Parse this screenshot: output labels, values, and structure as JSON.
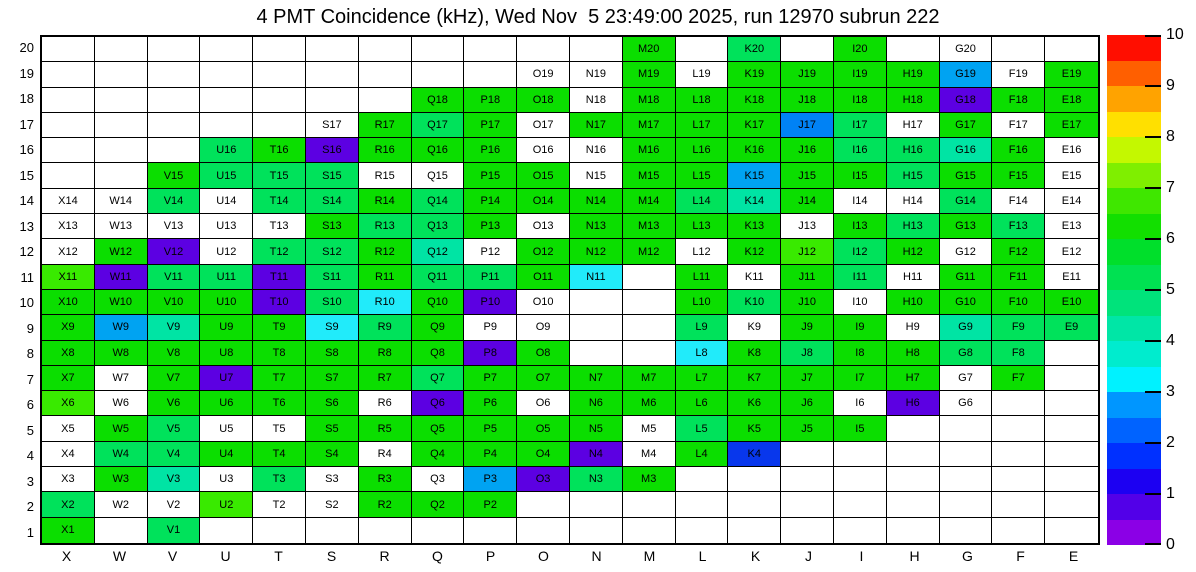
{
  "title": "4 PMT Coincidence (kHz), Wed Nov  5 23:49:00 2025, run 12970 subrun 222",
  "chart_data": {
    "type": "heatmap",
    "title": "4 PMT Coincidence (kHz), Wed Nov  5 23:49:00 2025, run 12970 subrun 222",
    "x_labels": [
      "X",
      "W",
      "V",
      "U",
      "T",
      "S",
      "R",
      "Q",
      "P",
      "O",
      "N",
      "M",
      "L",
      "K",
      "J",
      "I",
      "H",
      "G",
      "F",
      "E"
    ],
    "y_labels": [
      20,
      19,
      18,
      17,
      16,
      15,
      14,
      13,
      12,
      11,
      10,
      9,
      8,
      7,
      6,
      5,
      4,
      3,
      2,
      1
    ],
    "cell_encoding": "label:colorClass per cell, empty string = blank cell; classes: g=green, sg=spring-green, tg=teal-green, cy=cyan, sb=sky-blue, mb=medium-blue, bl=blue, pu=purple, yg=yellow-green, w=white(no rate shown)",
    "rows": [
      [
        "",
        "",
        "",
        "",
        "",
        "",
        "",
        "",
        "",
        "",
        "",
        "M20:g",
        "",
        "K20:sg",
        "",
        "I20:g",
        "",
        "G20:w",
        "",
        ""
      ],
      [
        "",
        "",
        "",
        "",
        "",
        "",
        "",
        "",
        "",
        "O19:w",
        "N19:w",
        "M19:g",
        "L19:w",
        "K19:g",
        "J19:g",
        "I19:g",
        "H19:g",
        "G19:sb",
        "F19:w",
        "E19:g"
      ],
      [
        "",
        "",
        "",
        "",
        "",
        "",
        "",
        "Q18:g",
        "P18:g",
        "O18:g",
        "N18:w",
        "M18:g",
        "L18:g",
        "K18:g",
        "J18:g",
        "I18:g",
        "H18:g",
        "G18:pu",
        "F18:g",
        "E18:g"
      ],
      [
        "",
        "",
        "",
        "",
        "",
        "S17:w",
        "R17:g",
        "Q17:sg",
        "P17:g",
        "O17:w",
        "N17:g",
        "M17:g",
        "L17:g",
        "K17:g",
        "J17:mb",
        "I17:sg",
        "H17:w",
        "G17:g",
        "F17:w",
        "E17:g"
      ],
      [
        "",
        "",
        "",
        "U16:sg",
        "T16:g",
        "S16:pu",
        "R16:g",
        "Q16:g",
        "P16:g",
        "O16:w",
        "N16:w",
        "M16:g",
        "L16:g",
        "K16:g",
        "J16:g",
        "I16:sg",
        "H16:sg",
        "G16:tg",
        "F16:g",
        "E16:w"
      ],
      [
        "",
        "",
        "V15:g",
        "U15:sg",
        "T15:sg",
        "S15:sg",
        "R15:w",
        "Q15:w",
        "P15:g",
        "O15:g",
        "N15:w",
        "M15:g",
        "L15:g",
        "K15:sb",
        "J15:g",
        "I15:g",
        "H15:sg",
        "G15:g",
        "F15:g",
        "E15:w"
      ],
      [
        "X14:w",
        "W14:w",
        "V14:sg",
        "U14:w",
        "T14:sg",
        "S14:sg",
        "R14:g",
        "Q14:sg",
        "P14:g",
        "O14:g",
        "N14:g",
        "M14:g",
        "L14:sg",
        "K14:tg",
        "J14:g",
        "I14:w",
        "H14:w",
        "G14:sg",
        "F14:w",
        "E14:w"
      ],
      [
        "X13:w",
        "W13:w",
        "V13:w",
        "U13:w",
        "T13:w",
        "S13:g",
        "R13:sg",
        "Q13:sg",
        "P13:g",
        "O13:w",
        "N13:g",
        "M13:g",
        "L13:g",
        "K13:g",
        "J13:w",
        "I13:g",
        "H13:sg",
        "G13:g",
        "F13:sg",
        "E13:w"
      ],
      [
        "X12:w",
        "W12:g",
        "V12:pu",
        "U12:w",
        "T12:sg",
        "S12:sg",
        "R12:g",
        "Q12:tg",
        "P12:w",
        "O12:g",
        "N12:g",
        "M12:g",
        "L12:w",
        "K12:g",
        "J12:yg",
        "I12:sg",
        "H12:g",
        "G12:w",
        "F12:g",
        "E12:w"
      ],
      [
        "X11:yg",
        "W11:pu",
        "V11:sg",
        "U11:sg",
        "T11:pu",
        "S11:sg",
        "R11:g",
        "Q11:sg",
        "P11:sg",
        "O11:g",
        "N11:cy",
        "",
        "L11:g",
        "K11:w",
        "J11:g",
        "I11:sg",
        "H11:w",
        "G11:g",
        "F11:g",
        "E11:w"
      ],
      [
        "X10:g",
        "W10:g",
        "V10:g",
        "U10:g",
        "T10:pu",
        "S10:sg",
        "R10:cy",
        "Q10:g",
        "P10:pu",
        "O10:w",
        "",
        "",
        "L10:g",
        "K10:sg",
        "J10:g",
        "I10:w",
        "H10:g",
        "G10:g",
        "F10:g",
        "E10:g"
      ],
      [
        "X9:g",
        "W9:sb",
        "V9:tg",
        "U9:g",
        "T9:g",
        "S9:cy",
        "R9:sg",
        "Q9:g",
        "P9:w",
        "O9:w",
        "",
        "",
        "L9:sg",
        "K9:w",
        "J9:g",
        "I9:g",
        "H9:w",
        "G9:tg",
        "F9:sg",
        "E9:sg"
      ],
      [
        "X8:g",
        "W8:g",
        "V8:g",
        "U8:g",
        "T8:g",
        "S8:g",
        "R8:g",
        "Q8:g",
        "P8:pu",
        "O8:g",
        "",
        "",
        "L8:cy",
        "K8:g",
        "J8:sg",
        "I8:g",
        "H8:g",
        "G8:sg",
        "F8:sg",
        ""
      ],
      [
        "X7:g",
        "W7:w",
        "V7:g",
        "U7:pu",
        "T7:g",
        "S7:g",
        "R7:g",
        "Q7:sg",
        "P7:g",
        "O7:g",
        "N7:g",
        "M7:g",
        "L7:g",
        "K7:g",
        "J7:g",
        "I7:g",
        "H7:g",
        "G7:w",
        "F7:g",
        ""
      ],
      [
        "X6:yg",
        "W6:w",
        "V6:g",
        "U6:g",
        "T6:g",
        "S6:g",
        "R6:w",
        "Q6:pu",
        "P6:g",
        "O6:w",
        "N6:g",
        "M6:g",
        "L6:g",
        "K6:g",
        "J6:g",
        "I6:w",
        "H6:pu",
        "G6:w",
        "",
        ""
      ],
      [
        "X5:w",
        "W5:g",
        "V5:sg",
        "U5:w",
        "T5:w",
        "S5:g",
        "R5:g",
        "Q5:g",
        "P5:g",
        "O5:g",
        "N5:g",
        "M5:w",
        "L5:sg",
        "K5:g",
        "J5:g",
        "I5:g",
        "",
        "",
        "",
        ""
      ],
      [
        "X4:w",
        "W4:sg",
        "V4:sg",
        "U4:g",
        "T4:g",
        "S4:g",
        "R4:w",
        "Q4:g",
        "P4:g",
        "O4:g",
        "N4:pu",
        "M4:w",
        "L4:g",
        "K4:bl",
        "",
        "",
        "",
        "",
        "",
        ""
      ],
      [
        "X3:w",
        "W3:g",
        "V3:tg",
        "U3:w",
        "T3:sg",
        "S3:w",
        "R3:g",
        "Q3:w",
        "P3:sb",
        "O3:pu",
        "N3:sg",
        "M3:g",
        "",
        "",
        "",
        "",
        "",
        "",
        "",
        ""
      ],
      [
        "X2:sg",
        "W2:w",
        "V2:w",
        "U2:yg",
        "T2:w",
        "S2:w",
        "R2:g",
        "Q2:g",
        "P2:g",
        "",
        "",
        "",
        "",
        "",
        "",
        "",
        "",
        "",
        "",
        ""
      ],
      [
        "X1:g",
        "",
        "V1:sg",
        "",
        "",
        "",
        "",
        "",
        "",
        "",
        "",
        "",
        "",
        "",
        "",
        "",
        "",
        "",
        "",
        ""
      ]
    ],
    "palette": {
      "g": "#0BDE00",
      "sg": "#00E25B",
      "tg": "#00E4A4",
      "cy": "#21EBFA",
      "sb": "#00A3F2",
      "mb": "#0082F5",
      "bl": "#0837EC",
      "pu": "#5C00E2",
      "yg": "#39EA00",
      "w": "#FFFFFF"
    },
    "value_estimates_by_class": {
      "g": 5.3,
      "sg": 4.7,
      "tg": 4.1,
      "cy": 3.4,
      "sb": 2.8,
      "mb": 2.5,
      "bl": 1.8,
      "pu": 0.4,
      "yg": 5.9,
      "w": null
    },
    "colorbar": {
      "min": 0,
      "max": 10,
      "ticks": [
        0,
        1,
        2,
        3,
        4,
        5,
        6,
        7,
        8,
        9,
        10
      ],
      "colors_bottom_to_top": [
        "#8B00E6",
        "#5200E8",
        "#1C00F2",
        "#0030FF",
        "#0063FF",
        "#0096FF",
        "#00F2FF",
        "#00ECCE",
        "#00E6A6",
        "#00E37B",
        "#00E152",
        "#00DF2B",
        "#12DF00",
        "#3FE700",
        "#7FEF00",
        "#C4F800",
        "#FFE000",
        "#FFA300",
        "#FF5F00",
        "#FF0E00"
      ]
    }
  }
}
